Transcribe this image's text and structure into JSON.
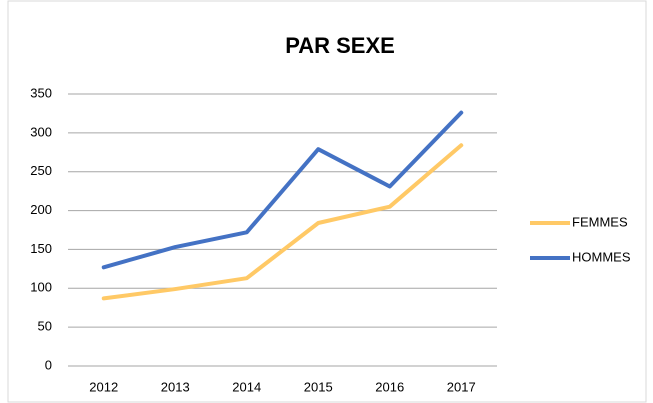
{
  "chart_data": {
    "type": "line",
    "title": "PAR SEXE",
    "categories": [
      "2012",
      "2013",
      "2014",
      "2015",
      "2016",
      "2017"
    ],
    "series": [
      {
        "name": "FEMMES",
        "color": "#ffc966",
        "values": [
          87,
          99,
          113,
          184,
          205,
          284
        ]
      },
      {
        "name": "HOMMES",
        "color": "#4472c4",
        "values": [
          127,
          153,
          172,
          279,
          231,
          326
        ]
      }
    ],
    "ylim": [
      0,
      350
    ],
    "yticks": [
      0,
      50,
      100,
      150,
      200,
      250,
      300,
      350
    ],
    "grid": true,
    "legend": "right"
  }
}
